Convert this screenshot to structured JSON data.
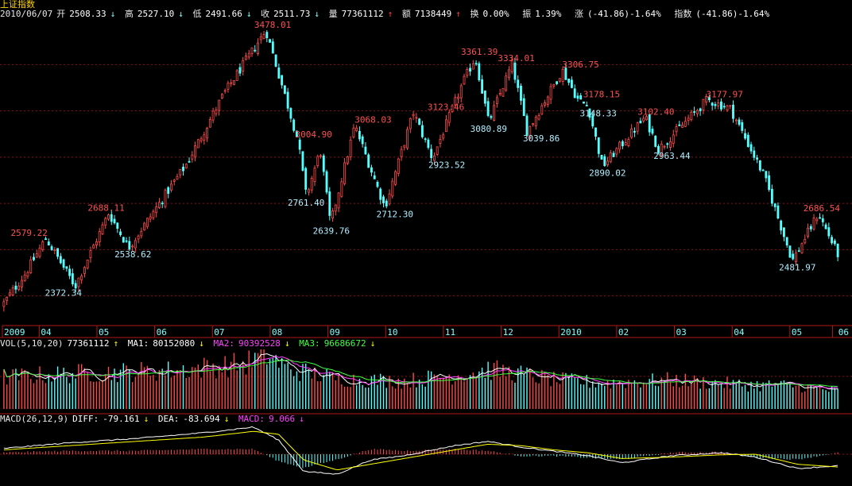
{
  "title": "上证指数",
  "quote": {
    "date": "2010/06/07",
    "open_label": "开",
    "open": "2508.33",
    "open_arrow": "↓",
    "high_label": "高",
    "high": "2527.10",
    "high_arrow": "↓",
    "low_label": "低",
    "low": "2491.66",
    "low_arrow": "↓",
    "close_label": "收",
    "close": "2511.73",
    "close_arrow": "↓",
    "volume_label": "量",
    "volume": "77361112",
    "volume_arrow": "↑",
    "amount_label": "额",
    "amount": "7138449",
    "amount_arrow": "↑",
    "turnover_label": "换",
    "turnover": "0.00%",
    "amplitude_label": "振",
    "amplitude": "1.39%",
    "change_label": "涨",
    "change": "(-41.86)-1.64%",
    "index_label": "指数",
    "index_change": "(-41.86)-1.64%"
  },
  "volume_panel": {
    "label": "VOL(5,10,20)",
    "value": "77361112",
    "value_arrow": "↑",
    "ma1_label": "MA1:",
    "ma1": "80152080",
    "ma1_arrow": "↓",
    "ma2_label": "MA2:",
    "ma2": "90392528",
    "ma2_arrow": "↓",
    "ma3_label": "MA3:",
    "ma3": "96686672",
    "ma3_arrow": "↓"
  },
  "macd_panel": {
    "label": "MACD(26,12,9)",
    "diff_label": "DIFF:",
    "diff": "-79.161",
    "diff_arrow": "↓",
    "dea_label": "DEA:",
    "dea": "-83.694",
    "dea_arrow": "↓",
    "macd_label": "MACD:",
    "macd": "9.066",
    "macd_arrow": "↓"
  },
  "colors": {
    "background": "#000000",
    "up": "#ff4a4a",
    "down": "#54ffff",
    "grid": "#8a1010",
    "border": "#b01818",
    "axis_text": "#7fffff",
    "high_label": "#ff5050",
    "low_label": "#b0f0ff",
    "ma1": "#ffffff",
    "ma2": "#ff40ff",
    "ma3": "#40ff40"
  },
  "chart_data": {
    "type": "candlestick",
    "x_range": [
      0,
      100
    ],
    "price_range": [
      2260,
      3520
    ],
    "x_ticks": [
      {
        "x": 0,
        "label": "2009"
      },
      {
        "x": 4.4,
        "label": "04"
      },
      {
        "x": 11.3,
        "label": "05"
      },
      {
        "x": 18.2,
        "label": "06"
      },
      {
        "x": 25.1,
        "label": "07"
      },
      {
        "x": 32,
        "label": "08"
      },
      {
        "x": 38.9,
        "label": "09"
      },
      {
        "x": 45.8,
        "label": "10"
      },
      {
        "x": 52.7,
        "label": "11"
      },
      {
        "x": 59.6,
        "label": "12"
      },
      {
        "x": 66.5,
        "label": "2010"
      },
      {
        "x": 73.4,
        "label": "02"
      },
      {
        "x": 80.3,
        "label": "03"
      },
      {
        "x": 87.2,
        "label": "04"
      },
      {
        "x": 94.1,
        "label": "05"
      },
      {
        "x": 99.2,
        "label": "06"
      }
    ],
    "grid_prices": [
      2330,
      2530,
      2730,
      2930,
      3130,
      3330
    ],
    "anchors": [
      {
        "x": 0,
        "price": 2290
      },
      {
        "x": 2.8,
        "price": 2430
      },
      {
        "x": 5.2,
        "price": 2579.22
      },
      {
        "x": 8.7,
        "price": 2372.34
      },
      {
        "x": 12.7,
        "price": 2688.11
      },
      {
        "x": 15.1,
        "price": 2538.62
      },
      {
        "x": 22,
        "price": 2900
      },
      {
        "x": 26.4,
        "price": 3200
      },
      {
        "x": 31.5,
        "price": 3478.01
      },
      {
        "x": 35.3,
        "price": 3004.9
      },
      {
        "x": 36.3,
        "price": 2761.4
      },
      {
        "x": 38,
        "price": 2960
      },
      {
        "x": 39.2,
        "price": 2639.76
      },
      {
        "x": 42.1,
        "price": 3068.03
      },
      {
        "x": 45.7,
        "price": 2712.3
      },
      {
        "x": 49.1,
        "price": 3123.46
      },
      {
        "x": 51.4,
        "price": 2923.52
      },
      {
        "x": 55,
        "price": 3250
      },
      {
        "x": 56.5,
        "price": 3361.39
      },
      {
        "x": 58.1,
        "price": 3080.89
      },
      {
        "x": 60.9,
        "price": 3334.01
      },
      {
        "x": 62.7,
        "price": 3039.86
      },
      {
        "x": 66.9,
        "price": 3306.75
      },
      {
        "x": 68.8,
        "price": 3178.15
      },
      {
        "x": 70,
        "price": 3148.33
      },
      {
        "x": 71.7,
        "price": 2890.02
      },
      {
        "x": 76.8,
        "price": 3102.4
      },
      {
        "x": 78.4,
        "price": 2963.44
      },
      {
        "x": 84.2,
        "price": 3177.97
      },
      {
        "x": 87,
        "price": 3140
      },
      {
        "x": 91,
        "price": 2850
      },
      {
        "x": 94.4,
        "price": 2481.97
      },
      {
        "x": 97.5,
        "price": 2686.54
      },
      {
        "x": 99.8,
        "price": 2511.73
      }
    ],
    "annotations": [
      {
        "x": 5.4,
        "price": 2579.22,
        "text": "2579.22",
        "kind": "high"
      },
      {
        "x": 9.5,
        "price": 2372.34,
        "text": "2372.34",
        "kind": "low"
      },
      {
        "x": 14.6,
        "price": 2688.11,
        "text": "2688.11",
        "kind": "high"
      },
      {
        "x": 17.8,
        "price": 2538.62,
        "text": "2538.62",
        "kind": "low"
      },
      {
        "x": 34.5,
        "price": 3478.01,
        "text": "3478.01",
        "kind": "high"
      },
      {
        "x": 39.4,
        "price": 3004.9,
        "text": "3004.90",
        "kind": "high"
      },
      {
        "x": 38.5,
        "price": 2761.4,
        "text": "2761.40",
        "kind": "low"
      },
      {
        "x": 41.5,
        "price": 2639.76,
        "text": "2639.76",
        "kind": "low"
      },
      {
        "x": 46.5,
        "price": 3068.03,
        "text": "3068.03",
        "kind": "high"
      },
      {
        "x": 49.1,
        "price": 2712.3,
        "text": "2712.30",
        "kind": "low"
      },
      {
        "x": 55.2,
        "price": 3123.46,
        "text": "3123.46",
        "kind": "high"
      },
      {
        "x": 55.3,
        "price": 2923.52,
        "text": "2923.52",
        "kind": "low"
      },
      {
        "x": 59.2,
        "price": 3361.39,
        "text": "3361.39",
        "kind": "high"
      },
      {
        "x": 60.3,
        "price": 3080.89,
        "text": "3080.89",
        "kind": "low"
      },
      {
        "x": 63.6,
        "price": 3334.01,
        "text": "3334.01",
        "kind": "high"
      },
      {
        "x": 66.6,
        "price": 3039.86,
        "text": "3039.86",
        "kind": "low"
      },
      {
        "x": 71.3,
        "price": 3306.75,
        "text": "3306.75",
        "kind": "high"
      },
      {
        "x": 73.8,
        "price": 3178.15,
        "text": "3178.15",
        "kind": "high"
      },
      {
        "x": 73.4,
        "price": 3148.33,
        "text": "3148.33",
        "kind": "low"
      },
      {
        "x": 74.5,
        "price": 2890.02,
        "text": "2890.02",
        "kind": "low"
      },
      {
        "x": 80.3,
        "price": 3102.4,
        "text": "3102.40",
        "kind": "high"
      },
      {
        "x": 82.2,
        "price": 2963.44,
        "text": "2963.44",
        "kind": "low"
      },
      {
        "x": 88.5,
        "price": 3177.97,
        "text": "3177.97",
        "kind": "high"
      },
      {
        "x": 97.2,
        "price": 2481.97,
        "text": "2481.97",
        "kind": "low"
      },
      {
        "x": 100.1,
        "price": 2686.54,
        "text": "2686.54",
        "kind": "high"
      }
    ],
    "volume_profile": [
      {
        "x": 0,
        "v": 0.55
      },
      {
        "x": 10,
        "v": 0.62
      },
      {
        "x": 20,
        "v": 0.66
      },
      {
        "x": 29,
        "v": 0.78
      },
      {
        "x": 31.5,
        "v": 0.95
      },
      {
        "x": 34,
        "v": 0.7
      },
      {
        "x": 40,
        "v": 0.52
      },
      {
        "x": 48,
        "v": 0.48
      },
      {
        "x": 55,
        "v": 0.6
      },
      {
        "x": 58,
        "v": 0.68
      },
      {
        "x": 62,
        "v": 0.6
      },
      {
        "x": 66,
        "v": 0.5
      },
      {
        "x": 72,
        "v": 0.45
      },
      {
        "x": 80,
        "v": 0.5
      },
      {
        "x": 88,
        "v": 0.42
      },
      {
        "x": 95,
        "v": 0.4
      },
      {
        "x": 100,
        "v": 0.3
      }
    ],
    "macd_profile": [
      {
        "x": 0,
        "diff": 0.2,
        "dea": 0.15
      },
      {
        "x": 8,
        "diff": 0.4,
        "dea": 0.3
      },
      {
        "x": 16,
        "diff": 0.55,
        "dea": 0.45
      },
      {
        "x": 24,
        "diff": 0.75,
        "dea": 0.6
      },
      {
        "x": 30,
        "diff": 0.95,
        "dea": 0.8
      },
      {
        "x": 33,
        "diff": 0.5,
        "dea": 0.7
      },
      {
        "x": 36,
        "diff": -0.6,
        "dea": -0.2
      },
      {
        "x": 40,
        "diff": -0.7,
        "dea": -0.55
      },
      {
        "x": 44,
        "diff": -0.2,
        "dea": -0.35
      },
      {
        "x": 48,
        "diff": -0.05,
        "dea": -0.15
      },
      {
        "x": 54,
        "diff": 0.3,
        "dea": 0.15
      },
      {
        "x": 58,
        "diff": 0.45,
        "dea": 0.35
      },
      {
        "x": 62,
        "diff": 0.25,
        "dea": 0.3
      },
      {
        "x": 66,
        "diff": 0.1,
        "dea": 0.15
      },
      {
        "x": 70,
        "diff": -0.05,
        "dea": 0.05
      },
      {
        "x": 74,
        "diff": -0.3,
        "dea": -0.15
      },
      {
        "x": 80,
        "diff": -0.05,
        "dea": -0.1
      },
      {
        "x": 86,
        "diff": 0.05,
        "dea": -0.02
      },
      {
        "x": 90,
        "diff": -0.1,
        "dea": 0
      },
      {
        "x": 95,
        "diff": -0.5,
        "dea": -0.35
      },
      {
        "x": 100,
        "diff": -0.4,
        "dea": -0.45
      }
    ]
  }
}
